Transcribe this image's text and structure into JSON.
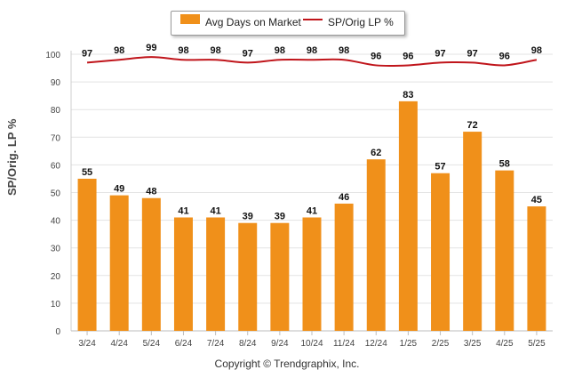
{
  "chart_data": {
    "type": "bar",
    "categories": [
      "3/24",
      "4/24",
      "5/24",
      "6/24",
      "7/24",
      "8/24",
      "9/24",
      "10/24",
      "11/24",
      "12/24",
      "1/25",
      "2/25",
      "3/25",
      "4/25",
      "5/25"
    ],
    "series": [
      {
        "name": "Avg Days on Market",
        "type": "bar",
        "color": "#f0901a",
        "values": [
          55,
          49,
          48,
          41,
          41,
          39,
          39,
          41,
          46,
          62,
          83,
          57,
          72,
          58,
          45
        ]
      },
      {
        "name": "SP/Orig LP %",
        "type": "line",
        "color": "#c0151b",
        "values": [
          97,
          98,
          99,
          98,
          98,
          97,
          98,
          98,
          98,
          96,
          96,
          97,
          97,
          96,
          98
        ]
      }
    ],
    "ylabel": "SP/Orig. LP %",
    "yticks": [
      0,
      10,
      20,
      30,
      40,
      50,
      60,
      70,
      80,
      90,
      100
    ],
    "ylim": [
      0,
      100
    ],
    "grid": true,
    "legend_position": "top-center",
    "copyright": "Copyright © Trendgraphix, Inc."
  }
}
